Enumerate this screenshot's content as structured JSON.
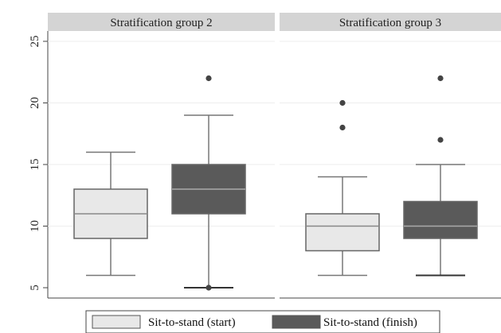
{
  "chart_data": {
    "type": "boxplot",
    "title": "",
    "xlabel": "",
    "ylabel": "",
    "ylim": [
      5,
      25
    ],
    "yticks": [
      5,
      10,
      15,
      20,
      25
    ],
    "grid": true,
    "legend_placement": "bottom",
    "series": [
      {
        "name": "Sit-to-stand (start)",
        "color": "#e8e8e8"
      },
      {
        "name": "Sit-to-stand (finish)",
        "color": "#5a5a5a"
      }
    ],
    "panels": [
      {
        "title": "Stratification group 2",
        "boxes": [
          {
            "series": "Sit-to-stand (start)",
            "whisker_low": 6,
            "q1": 9,
            "median": 11,
            "q3": 13,
            "whisker_high": 16,
            "outliers": []
          },
          {
            "series": "Sit-to-stand (finish)",
            "whisker_low": 5,
            "q1": 11,
            "median": 13,
            "q3": 15,
            "whisker_high": 19,
            "outliers": [
              22,
              5
            ]
          }
        ]
      },
      {
        "title": "Stratification group 3",
        "boxes": [
          {
            "series": "Sit-to-stand (start)",
            "whisker_low": 6,
            "q1": 8,
            "median": 10,
            "q3": 11,
            "whisker_high": 14,
            "outliers": [
              18,
              20
            ]
          },
          {
            "series": "Sit-to-stand (finish)",
            "whisker_low": 6,
            "q1": 9,
            "median": 10,
            "q3": 12,
            "whisker_high": 15,
            "outliers": [
              17,
              22
            ]
          }
        ]
      }
    ]
  }
}
